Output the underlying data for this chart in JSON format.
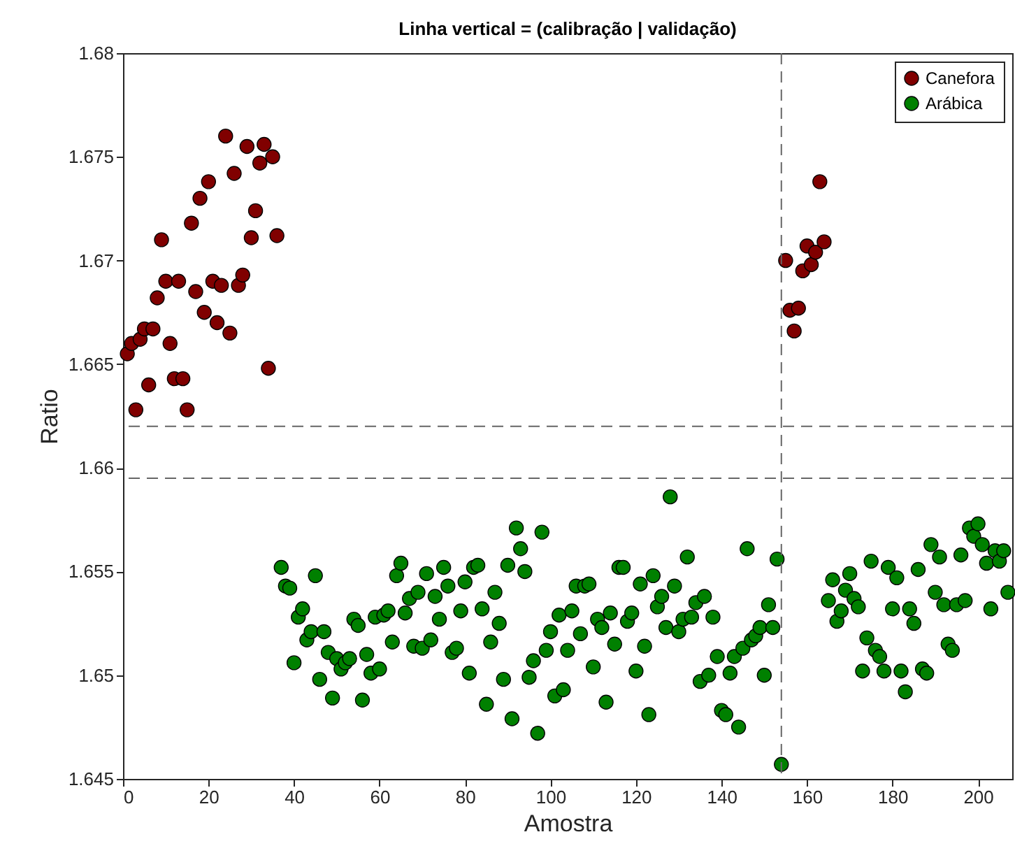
{
  "chart_data": {
    "type": "scatter",
    "title": "Linha vertical = (calibração | validação)",
    "xlabel": "Amostra",
    "ylabel": "Ratio",
    "xlim": [
      0,
      208
    ],
    "xticks": [
      0,
      20,
      40,
      60,
      80,
      100,
      120,
      140,
      160,
      180,
      200
    ],
    "ylim": [
      1.645,
      1.68
    ],
    "yticks": [
      1.645,
      1.65,
      1.655,
      1.66,
      1.665,
      1.67,
      1.675,
      1.68
    ],
    "grid": false,
    "legend": "top right",
    "marker": "circle",
    "ref_lines": [
      {
        "axis": "x",
        "value": 154,
        "color": "#666666",
        "line_style": "dashed"
      },
      {
        "axis": "y",
        "value": 1.662,
        "color": "#666666",
        "line_style": "dashed"
      },
      {
        "axis": "y",
        "value": 1.6595,
        "color": "#666666",
        "line_style": "dashed"
      }
    ],
    "series": [
      {
        "name": "Canefora",
        "color": "#800000",
        "x": [
          1,
          2,
          3,
          4,
          5,
          6,
          7,
          8,
          9,
          10,
          11,
          12,
          13,
          14,
          15,
          16,
          17,
          18,
          19,
          20,
          21,
          22,
          23,
          24,
          25,
          26,
          27,
          28,
          29,
          30,
          31,
          32,
          33,
          34,
          35,
          36,
          155,
          156,
          157,
          158,
          159,
          160,
          161,
          162,
          163,
          164
        ],
        "values": [
          1.6655,
          1.666,
          1.6628,
          1.6662,
          1.6667,
          1.664,
          1.6667,
          1.6682,
          1.671,
          1.669,
          1.666,
          1.6643,
          1.669,
          1.6643,
          1.6628,
          1.6718,
          1.6685,
          1.673,
          1.6675,
          1.6738,
          1.669,
          1.667,
          1.6688,
          1.676,
          1.6665,
          1.6742,
          1.6688,
          1.6693,
          1.6755,
          1.6711,
          1.6724,
          1.6747,
          1.6756,
          1.6648,
          1.675,
          1.6712,
          1.67,
          1.6676,
          1.6666,
          1.6677,
          1.6695,
          1.6707,
          1.6698,
          1.6704,
          1.6738,
          1.6709
        ]
      },
      {
        "name": "Arábica",
        "color": "#008000",
        "x": [
          37,
          38,
          39,
          40,
          41,
          42,
          43,
          44,
          45,
          46,
          47,
          48,
          49,
          50,
          51,
          52,
          53,
          54,
          55,
          56,
          57,
          58,
          59,
          60,
          61,
          62,
          63,
          64,
          65,
          66,
          67,
          68,
          69,
          70,
          71,
          72,
          73,
          74,
          75,
          76,
          77,
          78,
          79,
          80,
          81,
          82,
          83,
          84,
          85,
          86,
          87,
          88,
          89,
          90,
          91,
          92,
          93,
          94,
          95,
          96,
          97,
          98,
          99,
          100,
          101,
          102,
          103,
          104,
          105,
          106,
          107,
          108,
          109,
          110,
          111,
          112,
          113,
          114,
          115,
          116,
          117,
          118,
          119,
          120,
          121,
          122,
          123,
          124,
          125,
          126,
          127,
          128,
          129,
          130,
          131,
          132,
          133,
          134,
          135,
          136,
          137,
          138,
          139,
          140,
          141,
          142,
          143,
          144,
          145,
          146,
          147,
          148,
          149,
          150,
          151,
          152,
          153,
          154,
          165,
          166,
          167,
          168,
          169,
          170,
          171,
          172,
          173,
          174,
          175,
          176,
          177,
          178,
          179,
          180,
          181,
          182,
          183,
          184,
          185,
          186,
          187,
          188,
          189,
          190,
          191,
          192,
          193,
          194,
          195,
          196,
          197,
          198,
          199,
          200,
          201,
          202,
          203,
          204,
          205,
          206,
          207
        ],
        "values": [
          1.6552,
          1.6543,
          1.6542,
          1.6506,
          1.6528,
          1.6532,
          1.6517,
          1.6521,
          1.6548,
          1.6498,
          1.6521,
          1.6511,
          1.6489,
          1.6508,
          1.6503,
          1.6506,
          1.6508,
          1.6527,
          1.6524,
          1.6488,
          1.651,
          1.6501,
          1.6528,
          1.6503,
          1.6529,
          1.6531,
          1.6516,
          1.6548,
          1.6554,
          1.653,
          1.6537,
          1.6514,
          1.654,
          1.6513,
          1.6549,
          1.6517,
          1.6538,
          1.6527,
          1.6552,
          1.6543,
          1.6511,
          1.6513,
          1.6531,
          1.6545,
          1.6501,
          1.6552,
          1.6553,
          1.6532,
          1.6486,
          1.6516,
          1.654,
          1.6525,
          1.6498,
          1.6553,
          1.6479,
          1.6571,
          1.6561,
          1.655,
          1.6499,
          1.6507,
          1.6472,
          1.6569,
          1.6512,
          1.6521,
          1.649,
          1.6529,
          1.6493,
          1.6512,
          1.6531,
          1.6543,
          1.652,
          1.6543,
          1.6544,
          1.6504,
          1.6527,
          1.6523,
          1.6487,
          1.653,
          1.6515,
          1.6552,
          1.6552,
          1.6526,
          1.653,
          1.6502,
          1.6544,
          1.6514,
          1.6481,
          1.6548,
          1.6533,
          1.6538,
          1.6523,
          1.6586,
          1.6543,
          1.6521,
          1.6527,
          1.6557,
          1.6528,
          1.6535,
          1.6497,
          1.6538,
          1.65,
          1.6528,
          1.6509,
          1.6483,
          1.6481,
          1.6501,
          1.6509,
          1.6475,
          1.6513,
          1.6561,
          1.6517,
          1.6519,
          1.6523,
          1.65,
          1.6534,
          1.6523,
          1.6556,
          1.6457,
          1.6536,
          1.6546,
          1.6526,
          1.6531,
          1.6541,
          1.6549,
          1.6537,
          1.6533,
          1.6502,
          1.6518,
          1.6555,
          1.6512,
          1.6509,
          1.6502,
          1.6552,
          1.6532,
          1.6547,
          1.6502,
          1.6492,
          1.6532,
          1.6525,
          1.6551,
          1.6503,
          1.6501,
          1.6563,
          1.654,
          1.6557,
          1.6534,
          1.6515,
          1.6512,
          1.6534,
          1.6558,
          1.6536,
          1.6571,
          1.6567,
          1.6573,
          1.6563,
          1.6554,
          1.6532,
          1.656,
          1.6555,
          1.656,
          1.654
        ]
      }
    ]
  }
}
